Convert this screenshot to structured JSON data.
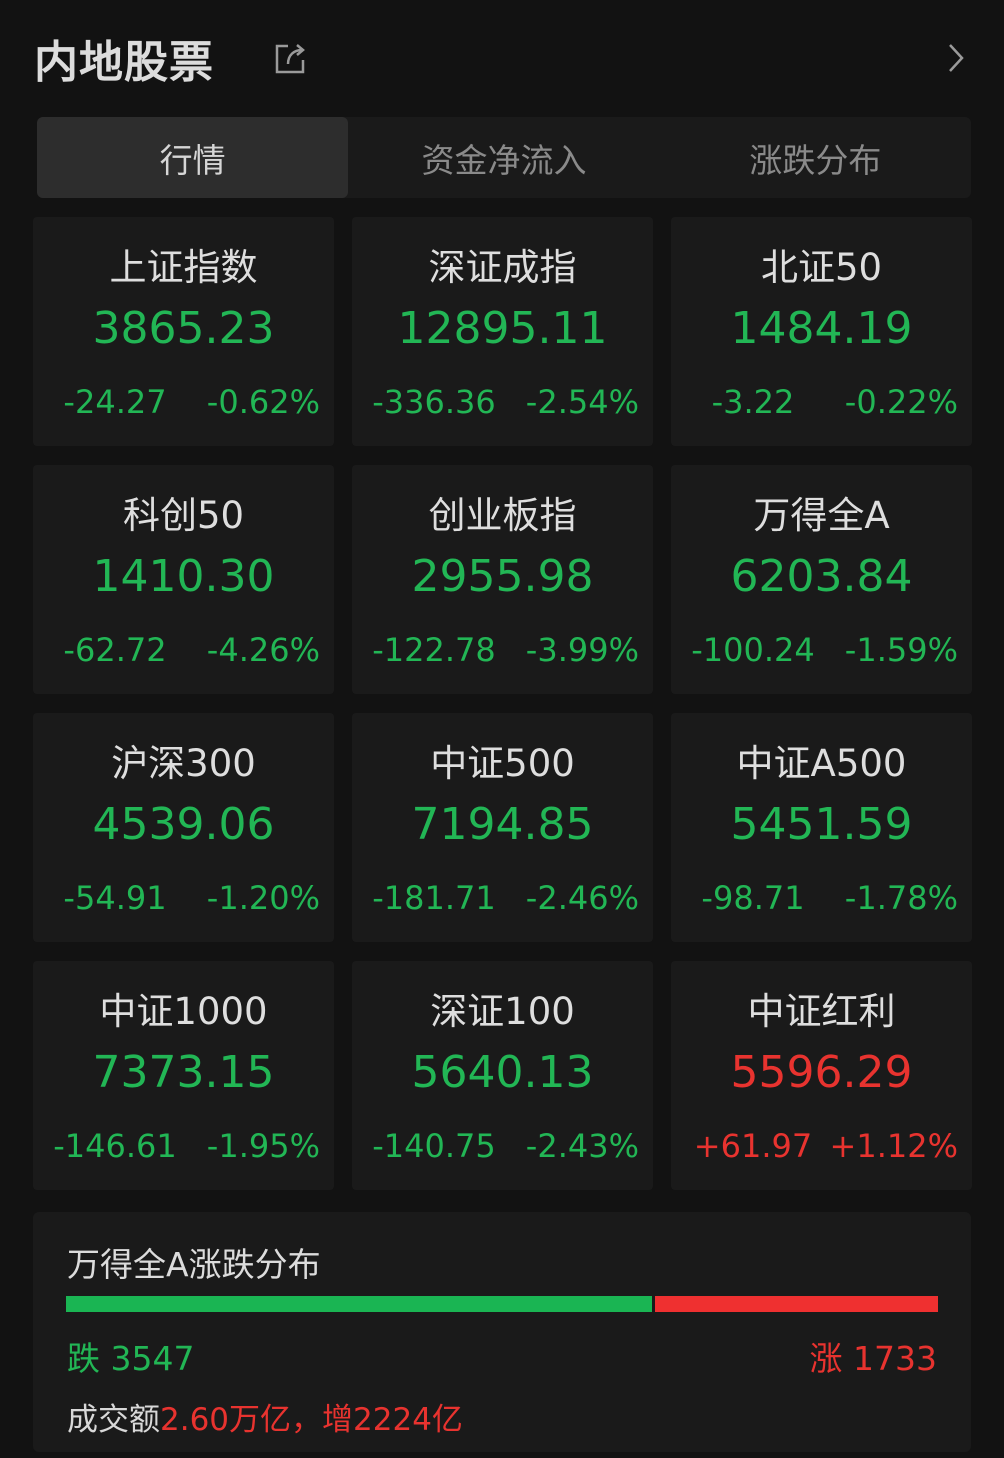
{
  "header": {
    "title": "内地股票",
    "share_icon": "share-icon",
    "more_icon": "chevron-right-icon"
  },
  "tabs": [
    {
      "label": "行情",
      "active": true
    },
    {
      "label": "资金净流入",
      "active": false
    },
    {
      "label": "涨跌分布",
      "active": false
    }
  ],
  "colors": {
    "down": "#22b655",
    "up": "#e8332f",
    "background": "#121212",
    "card": "#1a1a1a"
  },
  "indices": [
    {
      "name": "上证指数",
      "value": "3865.23",
      "change": "-24.27",
      "pct": "-0.62%",
      "dir": "down"
    },
    {
      "name": "深证成指",
      "value": "12895.11",
      "change": "-336.36",
      "pct": "-2.54%",
      "dir": "down"
    },
    {
      "name": "北证50",
      "value": "1484.19",
      "change": "-3.22",
      "pct": "-0.22%",
      "dir": "down"
    },
    {
      "name": "科创50",
      "value": "1410.30",
      "change": "-62.72",
      "pct": "-4.26%",
      "dir": "down"
    },
    {
      "name": "创业板指",
      "value": "2955.98",
      "change": "-122.78",
      "pct": "-3.99%",
      "dir": "down"
    },
    {
      "name": "万得全A",
      "value": "6203.84",
      "change": "-100.24",
      "pct": "-1.59%",
      "dir": "down"
    },
    {
      "name": "沪深300",
      "value": "4539.06",
      "change": "-54.91",
      "pct": "-1.20%",
      "dir": "down"
    },
    {
      "name": "中证500",
      "value": "7194.85",
      "change": "-181.71",
      "pct": "-2.46%",
      "dir": "down"
    },
    {
      "name": "中证A500",
      "value": "5451.59",
      "change": "-98.71",
      "pct": "-1.78%",
      "dir": "down"
    },
    {
      "name": "中证1000",
      "value": "7373.15",
      "change": "-146.61",
      "pct": "-1.95%",
      "dir": "down"
    },
    {
      "name": "深证100",
      "value": "5640.13",
      "change": "-140.75",
      "pct": "-2.43%",
      "dir": "down"
    },
    {
      "name": "中证红利",
      "value": "5596.29",
      "change": "+61.97",
      "pct": "+1.12%",
      "dir": "up"
    }
  ],
  "distribution": {
    "title": "万得全A涨跌分布",
    "fall_label": "跌 3547",
    "fall_count": 3547,
    "rise_label": "涨 1733",
    "rise_count": 1733,
    "turnover_label": "成交额",
    "turnover_value": "2.60万亿",
    "separator": "，",
    "turnover_change": "增2224亿"
  }
}
